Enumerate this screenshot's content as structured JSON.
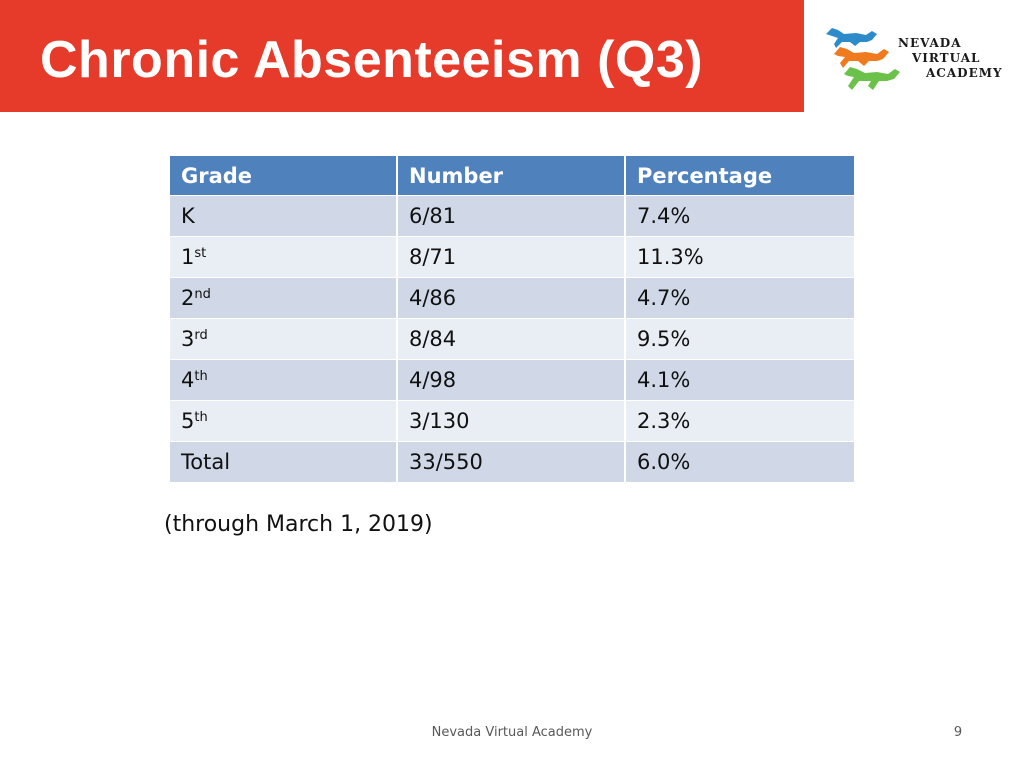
{
  "slide": {
    "title": "Chronic Absenteeism (Q3)",
    "logo": {
      "icon": "running-horses-icon",
      "lines": [
        "NEVADA",
        "VIRTUAL",
        "ACADEMY"
      ],
      "colors": [
        "#2e8bc9",
        "#f07b1e",
        "#6cc14a"
      ]
    },
    "table": {
      "headers": [
        "Grade",
        "Number",
        "Percentage"
      ],
      "rows": [
        {
          "grade": "K",
          "sup": "",
          "number": "6/81",
          "percentage": "7.4%"
        },
        {
          "grade": "1",
          "sup": "st",
          "number": "8/71",
          "percentage": "11.3%"
        },
        {
          "grade": "2",
          "sup": "nd",
          "number": "4/86",
          "percentage": "4.7%"
        },
        {
          "grade": "3",
          "sup": "rd",
          "number": "8/84",
          "percentage": "9.5%"
        },
        {
          "grade": "4",
          "sup": "th",
          "number": "4/98",
          "percentage": "4.1%"
        },
        {
          "grade": "5",
          "sup": "th",
          "number": "3/130",
          "percentage": "2.3%"
        },
        {
          "grade": "Total",
          "sup": "",
          "number": "33/550",
          "percentage": "6.0%"
        }
      ]
    },
    "note": "(through March 1, 2019)",
    "footer": "Nevada Virtual Academy",
    "page_number": "9"
  },
  "colors": {
    "title_bar": "#e63b2a",
    "header": "#4f81bd",
    "row_odd": "#d0d8e8",
    "row_even": "#e9edf4"
  }
}
